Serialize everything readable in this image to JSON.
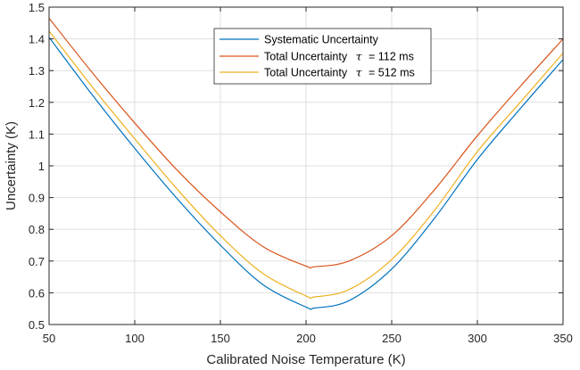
{
  "chart_data": {
    "type": "line",
    "title": "",
    "xlabel": "Calibrated Noise Temperature (K)",
    "ylabel": "Uncertainty (K)",
    "xlim": [
      50,
      350
    ],
    "ylim": [
      0.5,
      1.5
    ],
    "xticks": [
      50,
      100,
      150,
      200,
      250,
      300,
      350
    ],
    "yticks": [
      0.5,
      0.6,
      0.7,
      0.8,
      0.9,
      1,
      1.1,
      1.2,
      1.3,
      1.4,
      1.5
    ],
    "xtick_labels": [
      "50",
      "100",
      "150",
      "200",
      "250",
      "300",
      "350"
    ],
    "ytick_labels": [
      "0.5",
      "0.6",
      "0.7",
      "0.8",
      "0.9",
      "1",
      "1.1",
      "1.2",
      "1.3",
      "1.4",
      "1.5"
    ],
    "grid": true,
    "legend_position": "top-center",
    "x": [
      50,
      75,
      100,
      125,
      150,
      175,
      200,
      205,
      225,
      250,
      275,
      300,
      325,
      350
    ],
    "series": [
      {
        "name": "Systematic Uncertainty",
        "legend_prefix": "Systematic Uncertainty",
        "legend_suffix": "",
        "color": "#0072BD",
        "values": [
          1.405,
          1.225,
          1.055,
          0.895,
          0.75,
          0.625,
          0.555,
          0.552,
          0.575,
          0.675,
          0.835,
          1.02,
          1.18,
          1.335
        ]
      },
      {
        "name": "Total Uncertainty τ = 112 ms",
        "legend_prefix": "Total Uncertainty",
        "legend_suffix": "= 112 ms",
        "color": "#D95319",
        "values": [
          1.465,
          1.295,
          1.135,
          0.985,
          0.855,
          0.745,
          0.684,
          0.682,
          0.7,
          0.78,
          0.925,
          1.095,
          1.25,
          1.4
        ]
      },
      {
        "name": "Total Uncertainty τ = 512 ms",
        "legend_prefix": "Total Uncertainty",
        "legend_suffix": "= 512 ms",
        "color": "#EDB120",
        "values": [
          1.425,
          1.25,
          1.085,
          0.925,
          0.78,
          0.66,
          0.59,
          0.587,
          0.61,
          0.705,
          0.86,
          1.045,
          1.2,
          1.355
        ]
      }
    ]
  },
  "legend": {
    "tau_symbol": "τ"
  }
}
